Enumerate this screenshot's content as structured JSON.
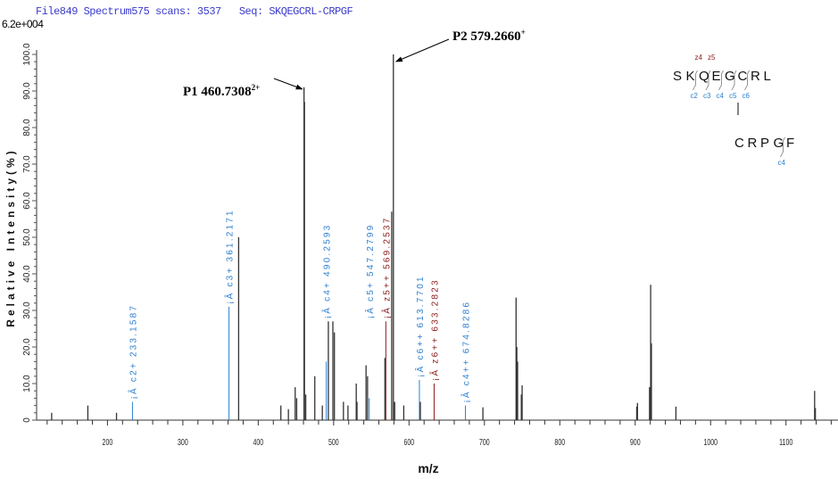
{
  "header": {
    "title": "File849 Spectrum575 scans: 3537   Seq: SKQEGCRL-CRPGF",
    "scale_label": "6.2e+004"
  },
  "colors": {
    "c_ion": "#2b7fd0",
    "z_ion": "#8b1a1a",
    "peak": "#333333",
    "header": "#3a3acc"
  },
  "chart_data": {
    "type": "bar",
    "title": "File849 Spectrum575 scans: 3537   Seq: SKQEGCRL-CRPGF",
    "xlabel": "m/z",
    "ylabel": "Relative Intensity(%)",
    "xlim": [
      106,
      1169
    ],
    "ylim": [
      0,
      100
    ],
    "xticks": [
      200,
      300,
      400,
      500,
      600,
      700,
      800,
      900,
      1000,
      1100
    ],
    "yticks": [
      0,
      10,
      20,
      30,
      40,
      50,
      60,
      70,
      80,
      90,
      100
    ],
    "grid": false,
    "peaks": [
      {
        "mz": 126,
        "i": 2,
        "type": "other"
      },
      {
        "mz": 174,
        "i": 4,
        "type": "other"
      },
      {
        "mz": 212,
        "i": 2,
        "type": "other"
      },
      {
        "mz": 233.1587,
        "i": 5,
        "type": "c"
      },
      {
        "mz": 361.2171,
        "i": 31,
        "type": "c"
      },
      {
        "mz": 374,
        "i": 50,
        "type": "other"
      },
      {
        "mz": 430,
        "i": 4,
        "type": "other"
      },
      {
        "mz": 440,
        "i": 3,
        "type": "other"
      },
      {
        "mz": 449,
        "i": 9,
        "type": "other"
      },
      {
        "mz": 451,
        "i": 6,
        "type": "other"
      },
      {
        "mz": 460.7308,
        "i": 91,
        "type": "other"
      },
      {
        "mz": 461.3,
        "i": 87,
        "type": "other"
      },
      {
        "mz": 463,
        "i": 7,
        "type": "other"
      },
      {
        "mz": 475,
        "i": 12,
        "type": "other"
      },
      {
        "mz": 485,
        "i": 4,
        "type": "other"
      },
      {
        "mz": 490.2593,
        "i": 16,
        "type": "c"
      },
      {
        "mz": 493,
        "i": 27,
        "type": "other"
      },
      {
        "mz": 499,
        "i": 27,
        "type": "other"
      },
      {
        "mz": 501,
        "i": 24,
        "type": "other"
      },
      {
        "mz": 513,
        "i": 5,
        "type": "other"
      },
      {
        "mz": 519,
        "i": 4,
        "type": "other"
      },
      {
        "mz": 530,
        "i": 10,
        "type": "other"
      },
      {
        "mz": 531,
        "i": 5,
        "type": "other"
      },
      {
        "mz": 543,
        "i": 15,
        "type": "other"
      },
      {
        "mz": 545,
        "i": 12,
        "type": "other"
      },
      {
        "mz": 547.2799,
        "i": 6,
        "type": "c"
      },
      {
        "mz": 568,
        "i": 17,
        "type": "other"
      },
      {
        "mz": 569.2537,
        "i": 27,
        "type": "z"
      },
      {
        "mz": 577,
        "i": 57,
        "type": "other"
      },
      {
        "mz": 579.266,
        "i": 100,
        "type": "other"
      },
      {
        "mz": 581,
        "i": 5,
        "type": "other"
      },
      {
        "mz": 593,
        "i": 4,
        "type": "other"
      },
      {
        "mz": 613.7701,
        "i": 11,
        "type": "c"
      },
      {
        "mz": 615,
        "i": 5,
        "type": "other"
      },
      {
        "mz": 633.2823,
        "i": 10,
        "type": "z"
      },
      {
        "mz": 674.8286,
        "i": 4,
        "type": "c"
      },
      {
        "mz": 698,
        "i": 3.5,
        "type": "other"
      },
      {
        "mz": 742,
        "i": 33.5,
        "type": "other"
      },
      {
        "mz": 743,
        "i": 20,
        "type": "other"
      },
      {
        "mz": 744,
        "i": 16,
        "type": "other"
      },
      {
        "mz": 749,
        "i": 7,
        "type": "other"
      },
      {
        "mz": 750,
        "i": 9.5,
        "type": "other"
      },
      {
        "mz": 902,
        "i": 3.7,
        "type": "other"
      },
      {
        "mz": 903,
        "i": 4.7,
        "type": "other"
      },
      {
        "mz": 919,
        "i": 9,
        "type": "other"
      },
      {
        "mz": 920.5,
        "i": 37,
        "type": "other"
      },
      {
        "mz": 921.5,
        "i": 21,
        "type": "other"
      },
      {
        "mz": 954,
        "i": 3.7,
        "type": "other"
      },
      {
        "mz": 1138,
        "i": 8,
        "type": "other"
      },
      {
        "mz": 1139,
        "i": 3.3,
        "type": "other"
      }
    ],
    "annotations": [
      {
        "mz": 233.1587,
        "i": 5,
        "type": "c",
        "text": "¡Â c2+ 233.1587"
      },
      {
        "mz": 361.2171,
        "i": 31,
        "type": "c",
        "text": "¡Â c3+ 361.2171"
      },
      {
        "mz": 490.2593,
        "i": 27,
        "type": "c",
        "text": "¡Â c4+ 490.2593"
      },
      {
        "mz": 547.2799,
        "i": 27,
        "type": "c",
        "text": "¡Â c5+ 547.2799"
      },
      {
        "mz": 569.2537,
        "i": 27,
        "type": "z",
        "text": "¡Â z5++ 569.2537"
      },
      {
        "mz": 613.7701,
        "i": 11,
        "type": "c",
        "text": "¡Â c6++ 613.7701"
      },
      {
        "mz": 633.2823,
        "i": 10,
        "type": "z",
        "text": "¡Â z6++ 633.2823"
      },
      {
        "mz": 674.8286,
        "i": 4,
        "type": "c",
        "text": "¡Â c4++ 674.8286"
      }
    ],
    "precursor_labels": [
      {
        "id": "P1",
        "text": "P1   460.7308",
        "charge": "2+",
        "mz": 460.7308,
        "i": 91
      },
      {
        "id": "P2",
        "text": "P2    579.2660",
        "charge": "+",
        "mz": 579.266,
        "i": 100
      }
    ]
  },
  "sequence": {
    "chain1": [
      "S",
      "K",
      "Q",
      "E",
      "G",
      "C",
      "R",
      "L"
    ],
    "chain2": [
      "C",
      "R",
      "P",
      "G",
      "F"
    ],
    "z_ions": [
      "z4",
      "z5"
    ],
    "c_ions_chain1": [
      "c2",
      "c3",
      "c4",
      "c5",
      "c6"
    ],
    "c_ions_chain2": [
      "c4"
    ]
  }
}
